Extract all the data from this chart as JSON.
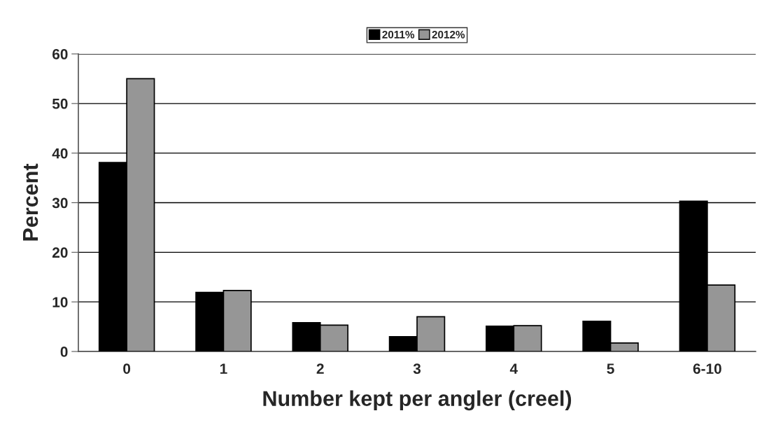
{
  "chart_data": {
    "type": "bar",
    "xlabel": "Number kept per angler (creel)",
    "ylabel": "Percent",
    "categories": [
      "0",
      "1",
      "2",
      "3",
      "4",
      "5",
      "6-10"
    ],
    "series": [
      {
        "name": "2011%",
        "color": "#000000",
        "values": [
          38.1,
          11.9,
          5.8,
          3.0,
          5.1,
          6.1,
          30.3
        ]
      },
      {
        "name": "2012%",
        "color": "#969696",
        "values": [
          55.0,
          12.3,
          5.3,
          7.0,
          5.2,
          1.7,
          13.4
        ]
      }
    ],
    "ylim": [
      0,
      60
    ],
    "yticks": [
      0,
      10,
      20,
      30,
      40,
      50,
      60
    ],
    "grid": "y",
    "legend": "top"
  }
}
